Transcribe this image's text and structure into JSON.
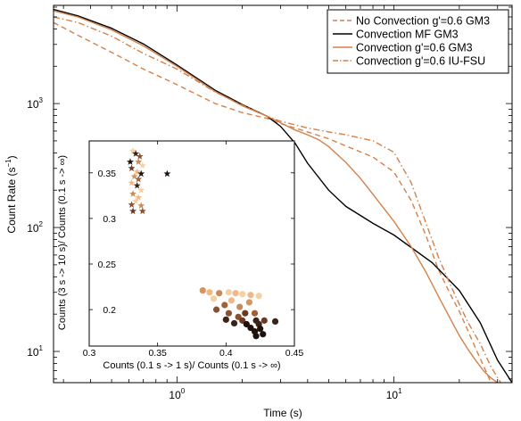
{
  "chart_data": [
    {
      "type": "line",
      "xlabel": "Time (s)",
      "ylabel": "Count Rate (s",
      "ylabel_sup": "−1",
      "ylabel_tail": ")",
      "xscale": "log",
      "yscale": "log",
      "xlim": [
        0.27,
        35
      ],
      "ylim": [
        5.6,
        6200
      ],
      "xticks": [
        {
          "value": 1,
          "base": "10",
          "exp": "0"
        },
        {
          "value": 10,
          "base": "10",
          "exp": "1"
        }
      ],
      "yticks": [
        {
          "value": 10,
          "base": "10",
          "exp": "1"
        },
        {
          "value": 100,
          "base": "10",
          "exp": "2"
        },
        {
          "value": 1000,
          "base": "10",
          "exp": "3"
        }
      ],
      "legend_position": "top-right",
      "series": [
        {
          "name": "No Convection g'=0.6 GM3",
          "color": "#d4814b",
          "dash": "dashed",
          "x": [
            0.27,
            0.35,
            0.5,
            0.7,
            1.0,
            1.5,
            2.0,
            2.6,
            3.0,
            4.0,
            5.0,
            6.0,
            8.0,
            10.0,
            12.0,
            14.0,
            16.0,
            18.0,
            20.0,
            22.0,
            24.0,
            26.0,
            28.0
          ],
          "y": [
            4500,
            3550,
            2590,
            1900,
            1420,
            1000,
            845,
            760,
            690,
            590,
            520,
            455,
            370,
            280,
            165,
            87,
            46,
            30,
            21,
            14.5,
            10.2,
            7.5,
            5.6
          ]
        },
        {
          "name": "Convection MF GM3",
          "color": "#000000",
          "dash": "solid",
          "x": [
            0.27,
            0.35,
            0.5,
            0.7,
            1.0,
            1.5,
            2.0,
            2.6,
            3.0,
            3.5,
            4.0,
            5.0,
            6.0,
            8.0,
            10.0,
            15.0,
            20.0,
            25.0,
            30.0,
            35.0
          ],
          "y": [
            5750,
            5100,
            4050,
            3030,
            2050,
            1280,
            980,
            790,
            655,
            480,
            330,
            200,
            148,
            108,
            87,
            52,
            31,
            17,
            8.5,
            5.6
          ]
        },
        {
          "name": "Convection g'=0.6 GM3",
          "color": "#d4814b",
          "dash": "solid",
          "x": [
            0.27,
            0.35,
            0.5,
            0.7,
            1.0,
            1.5,
            2.0,
            2.6,
            3.0,
            3.5,
            4.0,
            4.5,
            5.0,
            6.0,
            7.0,
            8.0,
            10.0,
            12.0,
            14.0,
            16.0,
            18.0,
            20.0,
            22.0,
            24.0,
            26.0,
            28.0,
            30.0
          ],
          "y": [
            5600,
            5000,
            3930,
            2920,
            2000,
            1250,
            960,
            790,
            700,
            612,
            560,
            510,
            450,
            335,
            250,
            185,
            112,
            70,
            44,
            28,
            19,
            13.4,
            10.3,
            8.3,
            6.9,
            6.1,
            5.6
          ]
        },
        {
          "name": "Convection g'=0.6 IU-FSU",
          "color": "#d4814b",
          "dash": "dashdot",
          "x": [
            0.27,
            0.35,
            0.5,
            0.7,
            1.0,
            1.5,
            2.0,
            2.6,
            3.0,
            4.0,
            5.0,
            6.0,
            8.0,
            10.0,
            12.0,
            14.0,
            16.0,
            18.0,
            20.0,
            22.0,
            25.0,
            28.0,
            31.0
          ],
          "y": [
            5000,
            4500,
            3500,
            2540,
            1900,
            1240,
            970,
            790,
            720,
            635,
            590,
            560,
            500,
            405,
            230,
            110,
            58,
            36,
            24,
            17,
            11.5,
            7.5,
            5.6
          ]
        }
      ]
    },
    {
      "type": "scatter",
      "role": "inset",
      "xlabel": "Counts (0.1 s -> 1 s)/ Counts (0.1 s -> ∞)",
      "ylabel": "Counts (3 s -> 10 s)/ Counts (0.1 s -> ∞)",
      "xlim": [
        0.3,
        0.45
      ],
      "ylim": [
        0.16,
        0.385
      ],
      "xticks": [
        "0.3",
        "0.35",
        "0.4",
        "0.45"
      ],
      "yticks": [
        "0.2",
        "0.25",
        "0.3",
        "0.35"
      ],
      "grid": false,
      "series": [
        {
          "name": "",
          "marker": "star",
          "points": [
            {
              "x": 0.332,
              "y": 0.374,
              "c": "#f6cfa3"
            },
            {
              "x": 0.334,
              "y": 0.371,
              "c": "#3a2418"
            },
            {
              "x": 0.337,
              "y": 0.368,
              "c": "#8a5030"
            },
            {
              "x": 0.33,
              "y": 0.362,
              "c": "#1e120c"
            },
            {
              "x": 0.336,
              "y": 0.362,
              "c": "#c88a58"
            },
            {
              "x": 0.339,
              "y": 0.358,
              "c": "#f6cfa3"
            },
            {
              "x": 0.331,
              "y": 0.355,
              "c": "#6a3a22"
            },
            {
              "x": 0.335,
              "y": 0.351,
              "c": "#f1b887"
            },
            {
              "x": 0.338,
              "y": 0.349,
              "c": "#1e120c"
            },
            {
              "x": 0.357,
              "y": 0.349,
              "c": "#1e120c"
            },
            {
              "x": 0.333,
              "y": 0.346,
              "c": "#d29462"
            },
            {
              "x": 0.336,
              "y": 0.343,
              "c": "#a06038"
            },
            {
              "x": 0.331,
              "y": 0.339,
              "c": "#f1b887"
            },
            {
              "x": 0.335,
              "y": 0.336,
              "c": "#3a2418"
            },
            {
              "x": 0.338,
              "y": 0.331,
              "c": "#f6cfa3"
            },
            {
              "x": 0.332,
              "y": 0.327,
              "c": "#c88a58"
            },
            {
              "x": 0.336,
              "y": 0.323,
              "c": "#f1b887"
            },
            {
              "x": 0.334,
              "y": 0.319,
              "c": "#f6cfa3"
            },
            {
              "x": 0.331,
              "y": 0.315,
              "c": "#8a5030"
            },
            {
              "x": 0.338,
              "y": 0.314,
              "c": "#c88a58"
            },
            {
              "x": 0.332,
              "y": 0.308,
              "c": "#6a3a22"
            },
            {
              "x": 0.339,
              "y": 0.308,
              "c": "#8a5030"
            }
          ]
        },
        {
          "name": "",
          "marker": "circle",
          "points": [
            {
              "x": 0.383,
              "y": 0.221,
              "c": "#d29462"
            },
            {
              "x": 0.388,
              "y": 0.219,
              "c": "#f1b887"
            },
            {
              "x": 0.395,
              "y": 0.218,
              "c": "#c88a58"
            },
            {
              "x": 0.402,
              "y": 0.219,
              "c": "#f6cfa3"
            },
            {
              "x": 0.407,
              "y": 0.218,
              "c": "#f1b887"
            },
            {
              "x": 0.412,
              "y": 0.217,
              "c": "#f6cfa3"
            },
            {
              "x": 0.418,
              "y": 0.216,
              "c": "#f1b887"
            },
            {
              "x": 0.424,
              "y": 0.215,
              "c": "#f6cfa3"
            },
            {
              "x": 0.391,
              "y": 0.212,
              "c": "#f6cfa3"
            },
            {
              "x": 0.404,
              "y": 0.21,
              "c": "#f1b887"
            },
            {
              "x": 0.417,
              "y": 0.208,
              "c": "#d29462"
            },
            {
              "x": 0.399,
              "y": 0.205,
              "c": "#a06038"
            },
            {
              "x": 0.41,
              "y": 0.203,
              "c": "#c88a58"
            },
            {
              "x": 0.393,
              "y": 0.2,
              "c": "#8a5030"
            },
            {
              "x": 0.402,
              "y": 0.196,
              "c": "#8a5030"
            },
            {
              "x": 0.414,
              "y": 0.196,
              "c": "#6a3a22"
            },
            {
              "x": 0.421,
              "y": 0.196,
              "c": "#a06038"
            },
            {
              "x": 0.409,
              "y": 0.192,
              "c": "#8a5030"
            },
            {
              "x": 0.4,
              "y": 0.189,
              "c": "#3a2418"
            },
            {
              "x": 0.412,
              "y": 0.188,
              "c": "#6a3a22"
            },
            {
              "x": 0.422,
              "y": 0.188,
              "c": "#3a2418"
            },
            {
              "x": 0.428,
              "y": 0.188,
              "c": "#6a3a22"
            },
            {
              "x": 0.436,
              "y": 0.187,
              "c": "#3a2418"
            },
            {
              "x": 0.406,
              "y": 0.185,
              "c": "#3a2418"
            },
            {
              "x": 0.415,
              "y": 0.184,
              "c": "#1e120c"
            },
            {
              "x": 0.424,
              "y": 0.184,
              "c": "#3a2418"
            },
            {
              "x": 0.418,
              "y": 0.18,
              "c": "#1e120c"
            },
            {
              "x": 0.425,
              "y": 0.179,
              "c": "#1e120c"
            },
            {
              "x": 0.421,
              "y": 0.176,
              "c": "#1e120c"
            },
            {
              "x": 0.427,
              "y": 0.173,
              "c": "#1e120c"
            },
            {
              "x": 0.422,
              "y": 0.171,
              "c": "#1e120c"
            }
          ]
        }
      ]
    }
  ]
}
